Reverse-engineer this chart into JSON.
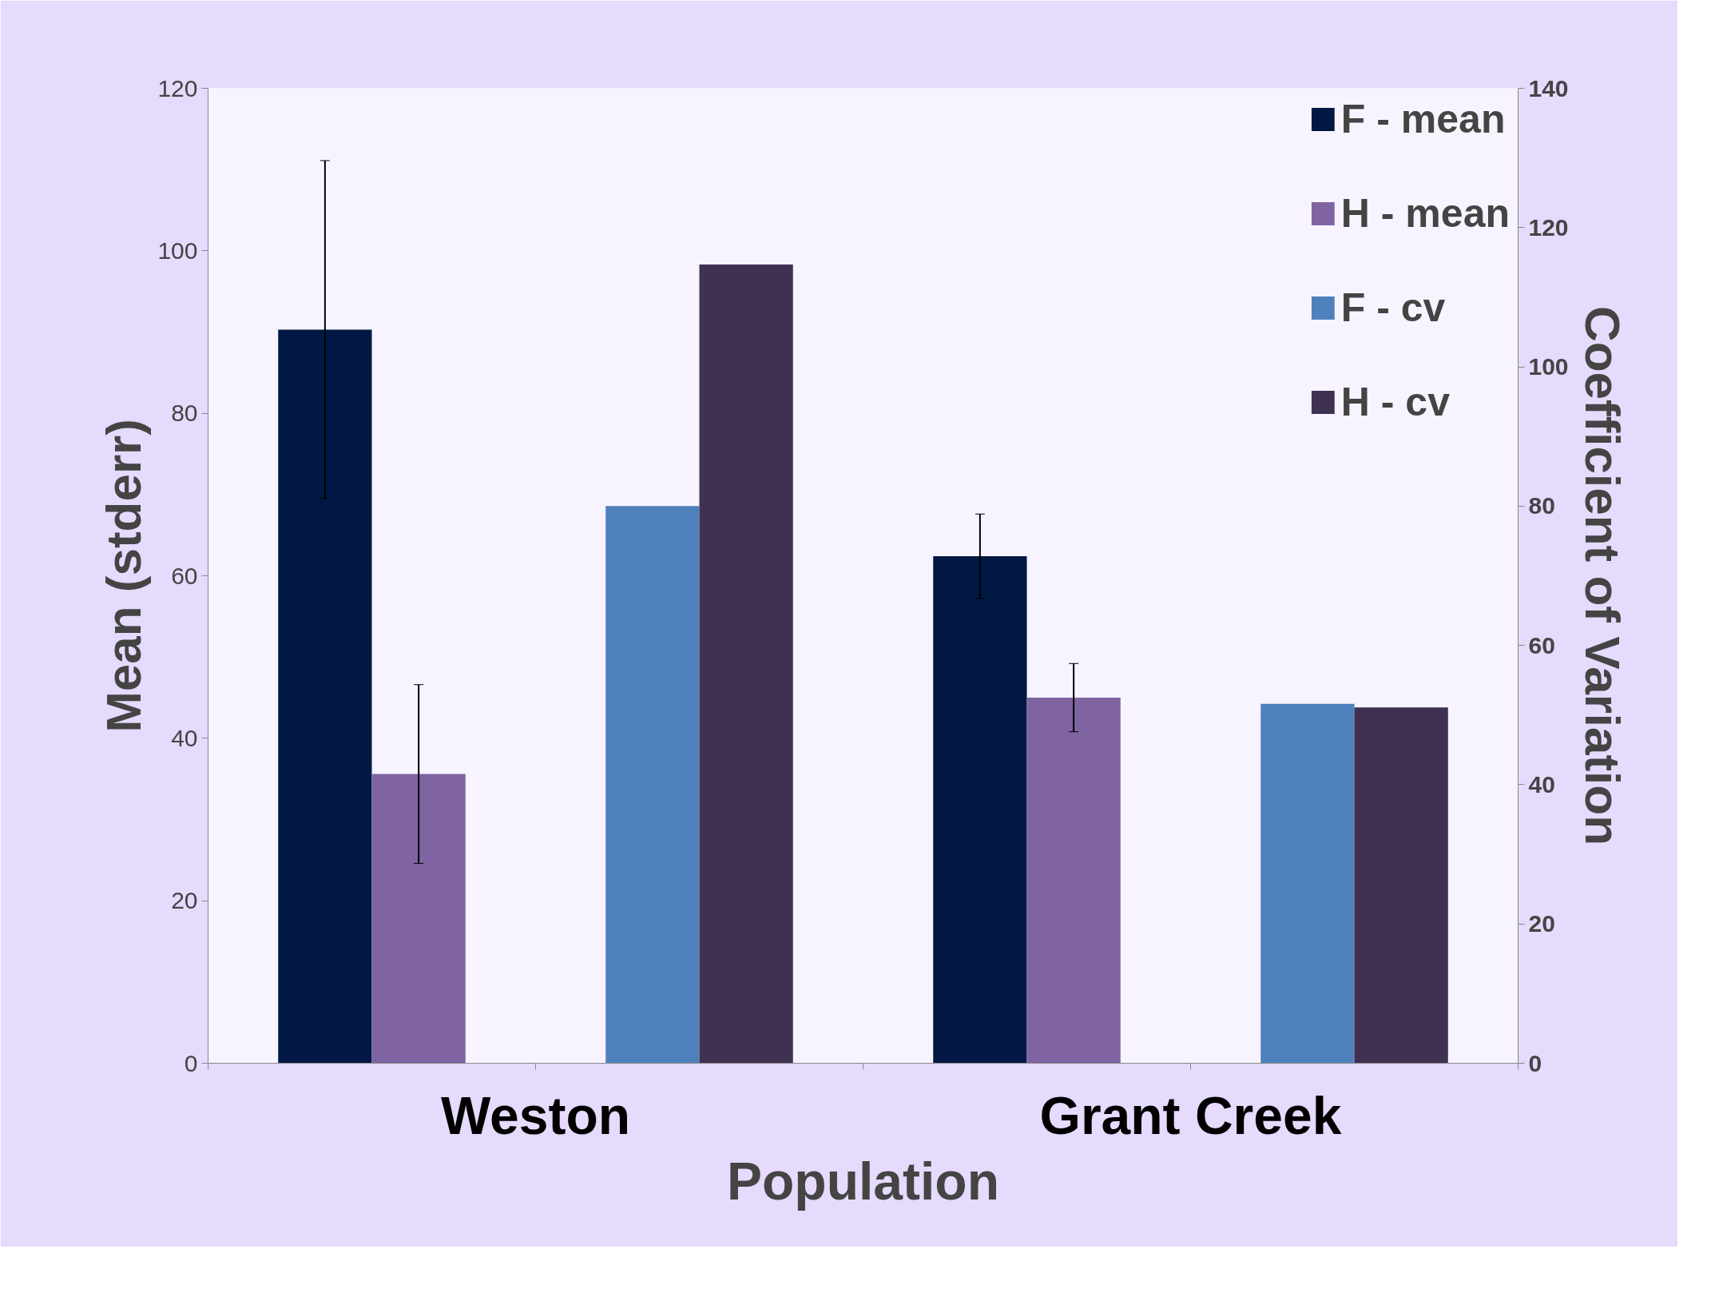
{
  "chart_data": {
    "type": "bar",
    "categories": [
      "Weston",
      "Grant Creek"
    ],
    "xlabel": "Population",
    "ylabel": "Mean (stderr)",
    "y2label": "Coefficient of Variation",
    "series": [
      {
        "name": "F - mean",
        "color": "#001843",
        "values": [
          90.3,
          62.4
        ],
        "errors": [
          20.8,
          5.2
        ]
      },
      {
        "name": "H - mean",
        "color": "#8064a2",
        "values": [
          35.6,
          45.0
        ],
        "errors": [
          11.0,
          4.2
        ]
      },
      {
        "name": "F - cv",
        "color": "#4f81bd",
        "values": [
          80.0,
          51.6
        ],
        "axis": "y2"
      },
      {
        "name": "H - cv",
        "color": "#3f3151",
        "values": [
          114.7,
          51.1
        ],
        "axis": "y2"
      }
    ],
    "ylim": [
      0,
      120
    ],
    "yticks": [
      0,
      20,
      40,
      60,
      80,
      100,
      120
    ],
    "y2lim": [
      0,
      140
    ],
    "y2ticks": [
      0,
      20,
      40,
      60,
      80,
      100,
      120,
      140
    ],
    "legend": "top right",
    "grid": false
  }
}
